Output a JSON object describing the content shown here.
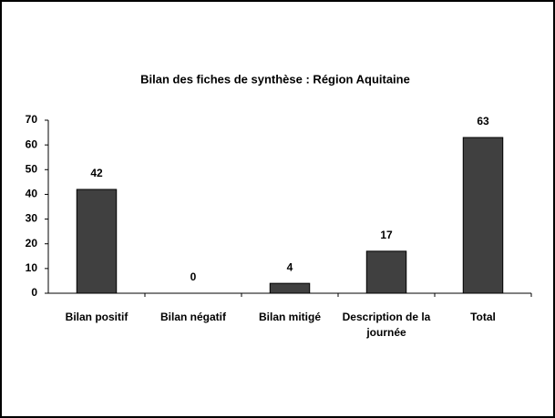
{
  "chart_data": {
    "type": "bar",
    "title": "Bilan des fiches de synthèse : Région Aquitaine",
    "categories": [
      "Bilan positif",
      "Bilan négatif",
      "Bilan mitigé",
      "Description de la journée",
      "Total"
    ],
    "values": [
      42,
      0,
      4,
      17,
      63
    ],
    "color": "#404040",
    "ylim": [
      0,
      70
    ],
    "yticks": [
      0,
      10,
      20,
      30,
      40,
      50,
      60,
      70
    ],
    "grid": false,
    "data_labels": true
  }
}
